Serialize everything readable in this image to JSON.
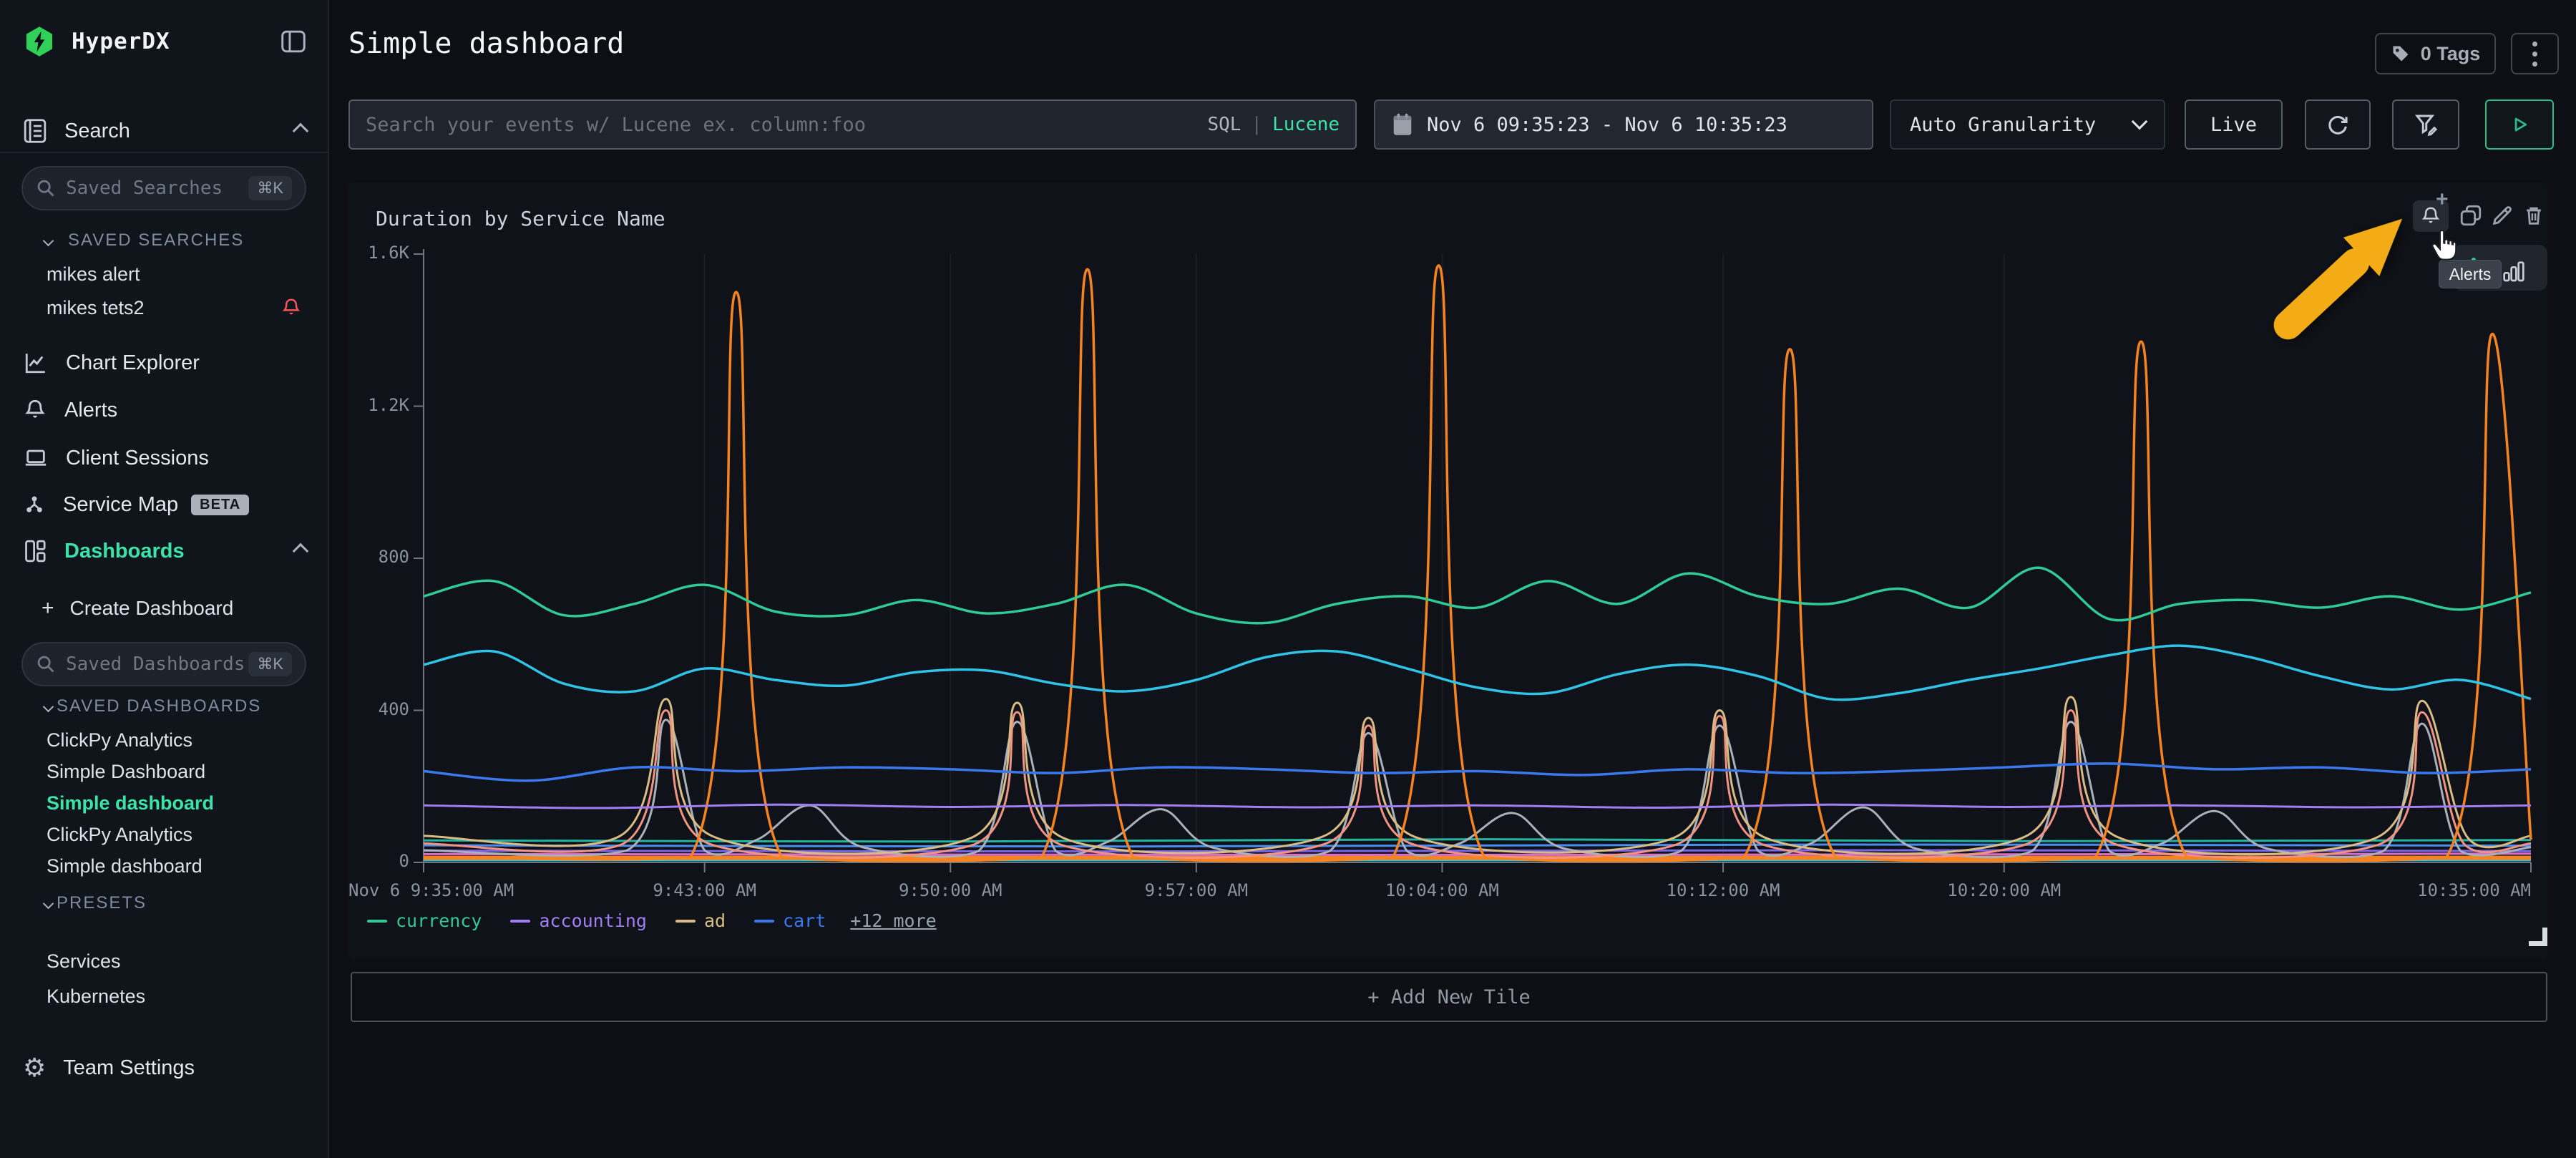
{
  "app": {
    "name": "HyperDX"
  },
  "colors": {
    "accent_green": "#3ce3a8",
    "alert_red": "#f2555a",
    "annotation_yellow": "#f3ac15"
  },
  "sidebar": {
    "search_section": {
      "label": "Search"
    },
    "saved_searches_input": {
      "placeholder": "Saved Searches",
      "shortcut": "⌘K"
    },
    "saved_searches": {
      "label": "SAVED SEARCHES",
      "items": [
        {
          "label": "mikes alert"
        },
        {
          "label": "mikes tets2"
        }
      ]
    },
    "nav": [
      {
        "label": "Chart Explorer"
      },
      {
        "label": "Alerts"
      },
      {
        "label": "Client Sessions"
      },
      {
        "label": "Service Map",
        "badge": "BETA"
      },
      {
        "label": "Dashboards"
      }
    ],
    "create_dashboard_label": "Create Dashboard",
    "saved_dashboards_input": {
      "placeholder": "Saved Dashboards",
      "shortcut": "⌘K"
    },
    "saved_dashboards": {
      "label": "SAVED DASHBOARDS",
      "items": [
        "ClickPy Analytics",
        "Simple Dashboard",
        "Simple dashboard",
        "ClickPy Analytics",
        "Simple dashboard"
      ],
      "active_index": 2
    },
    "presets": {
      "label": "PRESETS",
      "items": [
        "Services",
        "Kubernetes"
      ]
    },
    "team_settings_label": "Team Settings"
  },
  "header": {
    "title": "Simple dashboard",
    "tags_button": "0 Tags"
  },
  "toolbar": {
    "search_placeholder": "Search your events w/ Lucene ex. column:foo",
    "sql_label": "SQL",
    "divider": "|",
    "lucene_label": "Lucene",
    "date_range": "Nov 6 09:35:23 - Nov 6 10:35:23",
    "granularity": "Auto Granularity",
    "live_label": "Live"
  },
  "tile": {
    "tooltip_label": "Alerts",
    "add_tile_label": "+ Add New Tile"
  },
  "chart_data": {
    "type": "line",
    "title": "Duration by Service Name",
    "xlabel": "",
    "ylabel": "",
    "ylim": [
      0,
      1600
    ],
    "x_minutes_range": [
      0,
      60
    ],
    "grid": "vertical-faint",
    "legend_position": "bottom-left",
    "y_ticks": [
      {
        "label": "0",
        "v": 0
      },
      {
        "label": "400",
        "v": 400
      },
      {
        "label": "800",
        "v": 800
      },
      {
        "label": "1.2K",
        "v": 1200
      },
      {
        "label": "1.6K",
        "v": 1600
      }
    ],
    "x_ticks": [
      {
        "label": "Nov 6 9:35:00 AM",
        "t": 0,
        "align": "left"
      },
      {
        "label": "9:43:00 AM",
        "t": 8
      },
      {
        "label": "9:50:00 AM",
        "t": 15
      },
      {
        "label": "9:57:00 AM",
        "t": 22
      },
      {
        "label": "10:04:00 AM",
        "t": 29
      },
      {
        "label": "10:12:00 AM",
        "t": 37
      },
      {
        "label": "10:20:00 AM",
        "t": 45
      },
      {
        "label": "10:35:00 AM",
        "t": 60,
        "align": "right"
      }
    ],
    "legend": [
      {
        "label": "currency",
        "color": "#2fca96"
      },
      {
        "label": "accounting",
        "color": "#a07df2"
      },
      {
        "label": "ad",
        "color": "#d8bc84"
      },
      {
        "label": "cart",
        "color": "#3a78ee"
      }
    ],
    "legend_more": "+12 more",
    "series": [
      {
        "name": "",
        "color": "#25c7e3",
        "width": 3,
        "points": [
          [
            0,
            6
          ],
          [
            60,
            6
          ]
        ]
      },
      {
        "name": "",
        "color": "#f5831f",
        "width": 6,
        "points": [
          [
            0,
            12
          ],
          [
            60,
            12
          ]
        ]
      },
      {
        "name": "",
        "color": "#d86ec8",
        "width": 3,
        "points": [
          [
            0,
            22
          ],
          [
            30,
            20
          ],
          [
            60,
            23
          ]
        ]
      },
      {
        "name": "",
        "color": "#7a64e8",
        "width": 3,
        "points": [
          [
            0,
            31
          ],
          [
            20,
            29
          ],
          [
            40,
            32
          ],
          [
            60,
            30
          ]
        ]
      },
      {
        "name": "",
        "color": "#4a8cf0",
        "width": 3,
        "points": [
          [
            0,
            45
          ],
          [
            20,
            42
          ],
          [
            40,
            47
          ],
          [
            60,
            44
          ]
        ]
      },
      {
        "name": "",
        "color": "#23b5a0",
        "width": 3,
        "points": [
          [
            0,
            58
          ],
          [
            15,
            55
          ],
          [
            30,
            61
          ],
          [
            45,
            56
          ],
          [
            60,
            59
          ]
        ]
      },
      {
        "name": "",
        "color": "#a9b0ba",
        "width": 3,
        "points": [
          [
            0,
            32
          ],
          [
            5.8,
            32
          ],
          [
            6.9,
            375
          ],
          [
            8,
            32
          ],
          [
            9.5,
            60
          ],
          [
            11,
            150
          ],
          [
            12.5,
            40
          ],
          [
            15.8,
            30
          ],
          [
            16.9,
            370
          ],
          [
            18,
            30
          ],
          [
            19.5,
            55
          ],
          [
            21,
            140
          ],
          [
            22.5,
            38
          ],
          [
            25.8,
            30
          ],
          [
            26.9,
            340
          ],
          [
            28,
            30
          ],
          [
            29.5,
            50
          ],
          [
            31,
            130
          ],
          [
            32.5,
            36
          ],
          [
            35.8,
            30
          ],
          [
            36.9,
            360
          ],
          [
            38,
            30
          ],
          [
            39.5,
            50
          ],
          [
            41,
            145
          ],
          [
            42.5,
            36
          ],
          [
            45.8,
            30
          ],
          [
            46.9,
            370
          ],
          [
            48,
            30
          ],
          [
            49.5,
            50
          ],
          [
            51,
            135
          ],
          [
            52.5,
            36
          ],
          [
            55.8,
            30
          ],
          [
            56.9,
            365
          ],
          [
            58,
            30
          ],
          [
            60,
            40
          ]
        ]
      },
      {
        "name": "",
        "color": "#f29382",
        "width": 3,
        "points": [
          [
            0,
            50
          ],
          [
            5.7,
            50
          ],
          [
            6.9,
            400
          ],
          [
            8.1,
            50
          ],
          [
            15.7,
            48
          ],
          [
            16.9,
            395
          ],
          [
            18.1,
            48
          ],
          [
            25.7,
            50
          ],
          [
            26.9,
            360
          ],
          [
            28.1,
            50
          ],
          [
            35.7,
            48
          ],
          [
            36.9,
            385
          ],
          [
            38.1,
            48
          ],
          [
            45.7,
            50
          ],
          [
            46.9,
            400
          ],
          [
            48.1,
            50
          ],
          [
            55.7,
            48
          ],
          [
            56.9,
            395
          ],
          [
            58.1,
            48
          ],
          [
            60,
            50
          ]
        ]
      },
      {
        "name": "ad",
        "color": "#d8bc84",
        "width": 3,
        "points": [
          [
            0,
            70
          ],
          [
            5.6,
            70
          ],
          [
            6.9,
            430
          ],
          [
            8.2,
            70
          ],
          [
            15.6,
            65
          ],
          [
            16.9,
            420
          ],
          [
            18.2,
            65
          ],
          [
            25.6,
            68
          ],
          [
            26.9,
            380
          ],
          [
            28.2,
            68
          ],
          [
            35.6,
            65
          ],
          [
            36.9,
            400
          ],
          [
            38.2,
            65
          ],
          [
            45.6,
            68
          ],
          [
            46.9,
            435
          ],
          [
            48.2,
            68
          ],
          [
            55.6,
            65
          ],
          [
            56.9,
            425
          ],
          [
            58.2,
            65
          ],
          [
            60,
            70
          ]
        ]
      },
      {
        "name": "",
        "color": "#f5831f",
        "width": 3.5,
        "points": [
          [
            0,
            14
          ],
          [
            7.6,
            14
          ],
          [
            8.9,
            1500
          ],
          [
            10.2,
            14
          ],
          [
            17.6,
            14
          ],
          [
            18.9,
            1560
          ],
          [
            20.2,
            14
          ],
          [
            27.6,
            14
          ],
          [
            28.9,
            1570
          ],
          [
            30.2,
            14
          ],
          [
            37.6,
            14
          ],
          [
            38.9,
            1350
          ],
          [
            40.2,
            14
          ],
          [
            47.6,
            14
          ],
          [
            48.9,
            1370
          ],
          [
            50.2,
            14
          ],
          [
            57.6,
            14
          ],
          [
            58.9,
            1390
          ],
          [
            60,
            60
          ]
        ]
      },
      {
        "name": "accounting",
        "color": "#a07df2",
        "width": 3,
        "points": [
          [
            0,
            150
          ],
          [
            5,
            143
          ],
          [
            10,
            152
          ],
          [
            15,
            146
          ],
          [
            20,
            151
          ],
          [
            25,
            145
          ],
          [
            30,
            150
          ],
          [
            35,
            144
          ],
          [
            40,
            152
          ],
          [
            45,
            146
          ],
          [
            50,
            150
          ],
          [
            55,
            145
          ],
          [
            60,
            150
          ]
        ]
      },
      {
        "name": "cart",
        "color": "#3a78ee",
        "width": 3.5,
        "points": [
          [
            0,
            240
          ],
          [
            3,
            215
          ],
          [
            6,
            250
          ],
          [
            9,
            240
          ],
          [
            12,
            250
          ],
          [
            15,
            245
          ],
          [
            18,
            235
          ],
          [
            21,
            250
          ],
          [
            24,
            245
          ],
          [
            27,
            235
          ],
          [
            30,
            240
          ],
          [
            33,
            230
          ],
          [
            36,
            245
          ],
          [
            39,
            235
          ],
          [
            42,
            240
          ],
          [
            45,
            250
          ],
          [
            48,
            260
          ],
          [
            51,
            245
          ],
          [
            54,
            250
          ],
          [
            57,
            235
          ],
          [
            60,
            245
          ]
        ]
      },
      {
        "name": "",
        "color": "#2fc4e6",
        "width": 3.5,
        "points": [
          [
            0,
            520
          ],
          [
            2,
            555
          ],
          [
            4,
            470
          ],
          [
            6,
            450
          ],
          [
            8,
            510
          ],
          [
            10,
            480
          ],
          [
            12,
            465
          ],
          [
            14,
            500
          ],
          [
            16,
            505
          ],
          [
            18,
            470
          ],
          [
            20,
            450
          ],
          [
            22,
            480
          ],
          [
            24,
            540
          ],
          [
            26,
            555
          ],
          [
            28,
            510
          ],
          [
            30,
            460
          ],
          [
            32,
            445
          ],
          [
            34,
            495
          ],
          [
            36,
            520
          ],
          [
            38,
            490
          ],
          [
            40,
            430
          ],
          [
            42,
            445
          ],
          [
            44,
            480
          ],
          [
            46,
            510
          ],
          [
            48,
            545
          ],
          [
            50,
            570
          ],
          [
            52,
            540
          ],
          [
            54,
            490
          ],
          [
            56,
            455
          ],
          [
            58,
            480
          ],
          [
            60,
            430
          ]
        ]
      },
      {
        "name": "currency",
        "color": "#2fca96",
        "width": 3.5,
        "points": [
          [
            0,
            700
          ],
          [
            2,
            740
          ],
          [
            4,
            650
          ],
          [
            6,
            680
          ],
          [
            8,
            730
          ],
          [
            10,
            660
          ],
          [
            12,
            650
          ],
          [
            14,
            690
          ],
          [
            16,
            655
          ],
          [
            18,
            680
          ],
          [
            20,
            730
          ],
          [
            22,
            655
          ],
          [
            24,
            630
          ],
          [
            26,
            680
          ],
          [
            28,
            700
          ],
          [
            30,
            670
          ],
          [
            32,
            740
          ],
          [
            34,
            680
          ],
          [
            36,
            760
          ],
          [
            38,
            700
          ],
          [
            40,
            680
          ],
          [
            42,
            720
          ],
          [
            44,
            670
          ],
          [
            46,
            775
          ],
          [
            48,
            640
          ],
          [
            50,
            680
          ],
          [
            52,
            690
          ],
          [
            54,
            670
          ],
          [
            56,
            700
          ],
          [
            58,
            665
          ],
          [
            60,
            710
          ]
        ]
      }
    ]
  }
}
